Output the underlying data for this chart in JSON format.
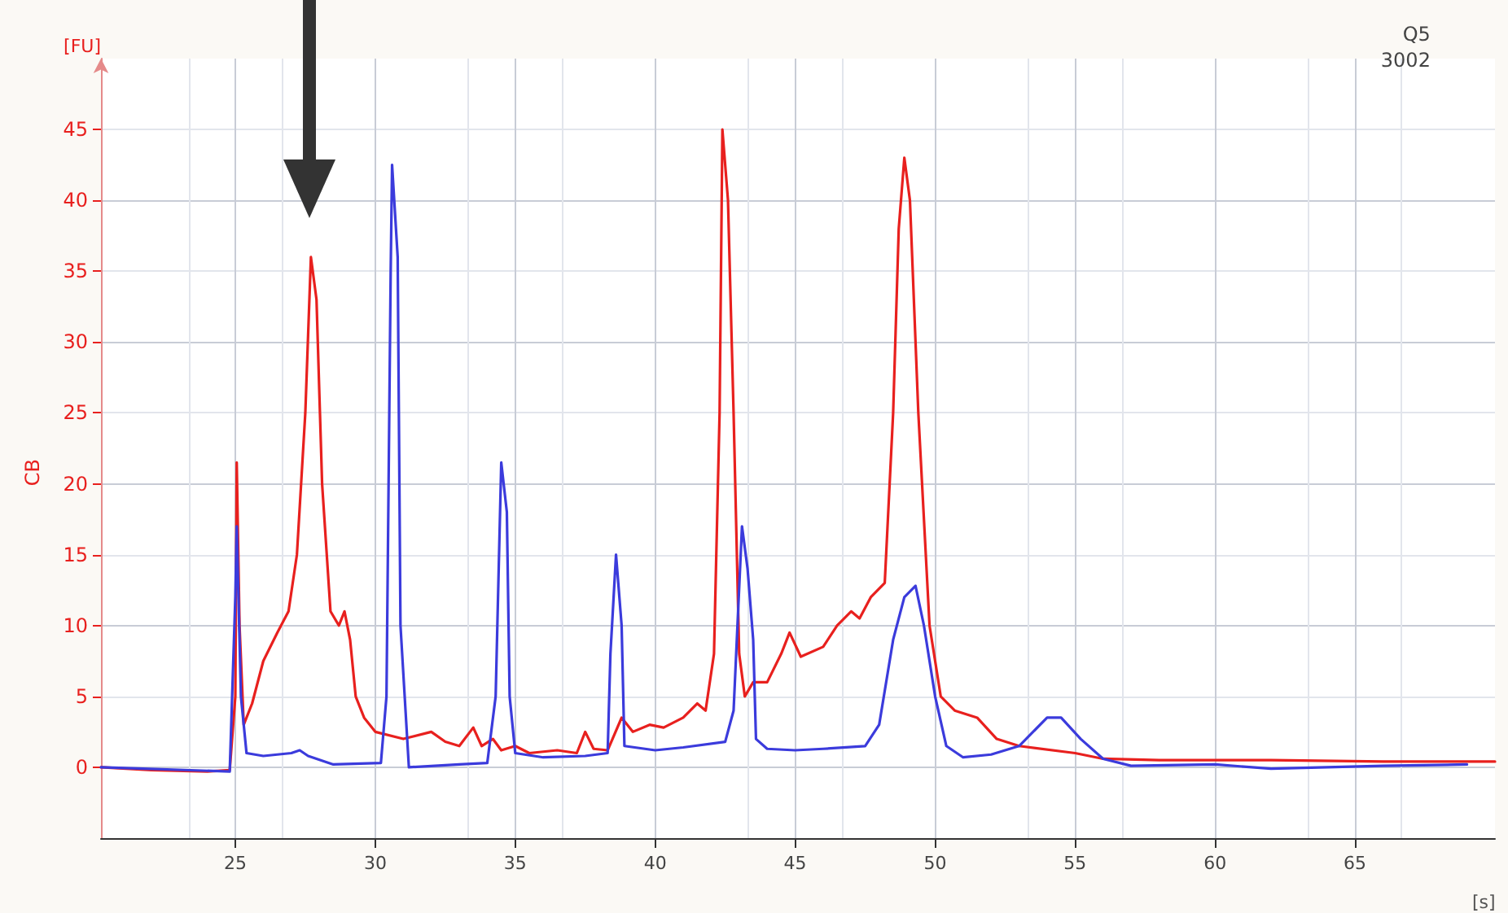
{
  "chart_data": {
    "type": "line",
    "title": "Q5",
    "subtitle": "3002",
    "xlabel": "[s]",
    "ylabel": "[FU]",
    "annotations": [
      "CB"
    ],
    "xlim": [
      20.2,
      70
    ],
    "xticks": [
      25,
      30,
      35,
      40,
      45,
      50,
      55,
      60,
      65
    ],
    "ylim": [
      -5,
      50
    ],
    "yticks": [
      0,
      5,
      10,
      15,
      20,
      25,
      30,
      35,
      40,
      45
    ],
    "grid": true,
    "marker": "none",
    "line_style": "solid",
    "series": [
      {
        "color": "#e8201e",
        "x": [
          20.2,
          22,
          24,
          24.8,
          25.0,
          25.05,
          25.15,
          25.3,
          25.6,
          26,
          26.5,
          26.9,
          27.2,
          27.5,
          27.7,
          27.9,
          28.1,
          28.4,
          28.7,
          28.9,
          29.1,
          29.3,
          29.6,
          30,
          31,
          32,
          32.5,
          33,
          33.5,
          33.8,
          34.2,
          34.5,
          35,
          35.5,
          36.5,
          37.2,
          37.5,
          37.8,
          38.3,
          38.8,
          39.2,
          39.8,
          40.3,
          41,
          41.5,
          41.8,
          42.1,
          42.3,
          42.4,
          42.6,
          42.8,
          43.0,
          43.2,
          43.5,
          44,
          44.5,
          44.8,
          45.2,
          46,
          46.5,
          47,
          47.3,
          47.7,
          48.2,
          48.5,
          48.7,
          48.9,
          49.1,
          49.4,
          49.8,
          50.2,
          50.7,
          51.5,
          52.2,
          53,
          55,
          56,
          58,
          62,
          66,
          70
        ],
        "values": [
          0,
          -0.2,
          -0.3,
          -0.2,
          5,
          21.5,
          10,
          3,
          4.5,
          7.5,
          9.5,
          11,
          15,
          25,
          36,
          33,
          20,
          11,
          10,
          11,
          9,
          5,
          3.5,
          2.5,
          2,
          2.5,
          1.8,
          1.5,
          2.8,
          1.5,
          2.0,
          1.2,
          1.5,
          1,
          1.2,
          1.0,
          2.5,
          1.3,
          1.2,
          3.5,
          2.5,
          3.0,
          2.8,
          3.5,
          4.5,
          4.0,
          8,
          25,
          45,
          40,
          25,
          8,
          5,
          6,
          6,
          8,
          9.5,
          7.8,
          8.5,
          10,
          11,
          10.5,
          12,
          13,
          25,
          38,
          43,
          40,
          25,
          10,
          5,
          4,
          3.5,
          2,
          1.5,
          1.0,
          0.6,
          0.5,
          0.5,
          0.4,
          0.4
        ]
      },
      {
        "color": "#3b3bdc",
        "x": [
          20.2,
          24.8,
          25.0,
          25.05,
          25.2,
          25.4,
          26,
          27,
          27.3,
          27.6,
          28.5,
          30.2,
          30.4,
          30.55,
          30.6,
          30.8,
          30.9,
          31.2,
          33,
          34,
          34.3,
          34.5,
          34.7,
          34.8,
          35,
          36,
          37.5,
          38.3,
          38.4,
          38.6,
          38.8,
          38.9,
          40,
          41,
          42.5,
          42.8,
          43.1,
          43.3,
          43.5,
          43.6,
          44,
          45,
          46,
          47.5,
          48.0,
          48.5,
          48.9,
          49.3,
          49.6,
          50,
          50.4,
          51,
          52,
          53,
          54,
          54.5,
          55.2,
          56,
          57,
          60,
          62,
          66,
          69
        ],
        "values": [
          0,
          -0.3,
          12,
          17,
          5,
          1,
          0.8,
          1,
          1.2,
          0.8,
          0.2,
          0.3,
          5,
          35,
          42.5,
          36,
          10,
          0,
          0.2,
          0.3,
          5,
          21.5,
          18,
          5,
          1,
          0.7,
          0.8,
          1,
          8,
          15,
          10,
          1.5,
          1.2,
          1.4,
          1.8,
          4,
          17,
          14,
          9,
          2,
          1.3,
          1.2,
          1.3,
          1.5,
          3,
          9,
          12,
          12.8,
          10,
          5,
          1.5,
          0.7,
          0.9,
          1.5,
          3.5,
          3.5,
          2,
          0.6,
          0.1,
          0.2,
          -0.1,
          0.1,
          0.2
        ]
      }
    ]
  }
}
